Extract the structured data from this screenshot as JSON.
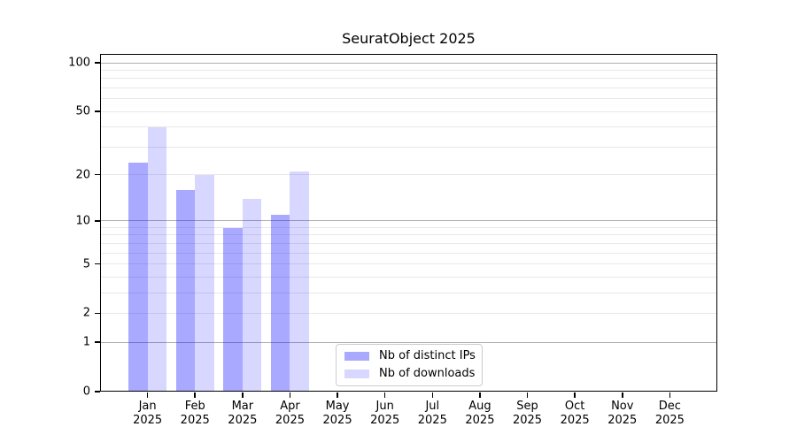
{
  "chart_data": {
    "type": "bar",
    "title": "SeuratObject 2025",
    "year_label": "2025",
    "categories": [
      "Jan",
      "Feb",
      "Mar",
      "Apr",
      "May",
      "Jun",
      "Jul",
      "Aug",
      "Sep",
      "Oct",
      "Nov",
      "Dec"
    ],
    "series": [
      {
        "name": "Nb of distinct IPs",
        "color": "rgba(8,8,255,0.35)",
        "values": [
          24,
          16,
          9,
          11,
          0,
          0,
          0,
          0,
          0,
          0,
          0,
          0
        ]
      },
      {
        "name": "Nb of downloads",
        "color": "rgba(8,8,255,0.16)",
        "values": [
          40,
          20,
          14,
          21,
          0,
          0,
          0,
          0,
          0,
          0,
          0,
          0
        ]
      }
    ],
    "yscale": "log1p",
    "ylim": [
      0,
      113.6
    ],
    "yticks": [
      0,
      1,
      2,
      5,
      10,
      20,
      50,
      100
    ],
    "grid": {
      "major": [
        1,
        10,
        100
      ],
      "minor": [
        2,
        3,
        4,
        5,
        6,
        7,
        8,
        9,
        20,
        30,
        40,
        50,
        60,
        70,
        80,
        90
      ]
    },
    "legend_position": "lower-center-left",
    "colors": {
      "grid_major": "#b0b0b0",
      "grid_minor": "#e8e8e8",
      "spine": "#000000",
      "text": "#000000"
    }
  }
}
